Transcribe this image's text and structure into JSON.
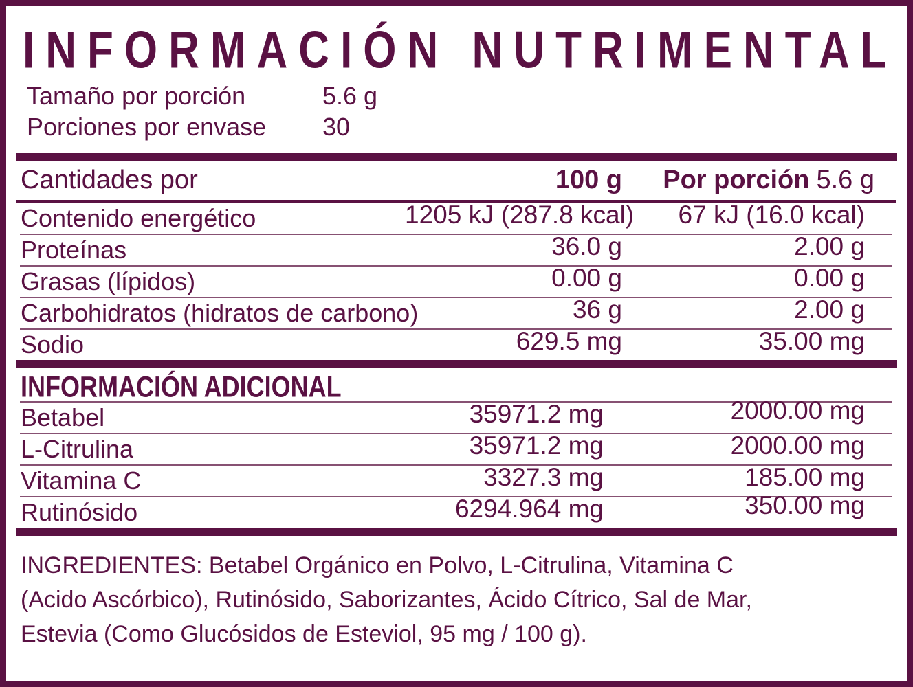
{
  "colors": {
    "primary": "#5a1143",
    "thin_divider": "#875173",
    "background": "#ffffff"
  },
  "header": {
    "title": "INFORMACIÓN NUTRIMENTAL",
    "serving_size_label": "Tamaño por porción",
    "serving_size_value": "5.6 g",
    "servings_label": "Porciones por envase",
    "servings_value": "30"
  },
  "table": {
    "amounts_label": "Cantidades por",
    "col_100g": "100 g",
    "col_portion_label": "Por porción",
    "col_portion_value": "5.6 g",
    "rows": [
      {
        "label": "Contenido energético",
        "per100": "1205 kJ (287.8 kcal)",
        "portion": "67 kJ (16.0 kcal)"
      },
      {
        "label": "Proteínas",
        "per100": "36.0 g",
        "portion": "2.00 g"
      },
      {
        "label": "Grasas (lípidos)",
        "per100": "0.00 g",
        "portion": "0.00 g"
      },
      {
        "label": "Carbohidratos (hidratos de carbono)",
        "per100": "36 g",
        "portion": "2.00 g"
      },
      {
        "label": "Sodio",
        "per100": "629.5 mg",
        "portion": "35.00 mg"
      }
    ]
  },
  "additional": {
    "title": "INFORMACIÓN ADICIONAL",
    "rows": [
      {
        "label": "Betabel",
        "per100": "35971.2 mg",
        "portion": "2000.00 mg"
      },
      {
        "label": "L-Citrulina",
        "per100": "35971.2 mg",
        "portion": "2000.00 mg"
      },
      {
        "label": "Vitamina C",
        "per100": "3327.3 mg",
        "portion": "185.00 mg"
      },
      {
        "label": "Rutinósido",
        "per100": "6294.964 mg",
        "portion": "350.00 mg"
      }
    ]
  },
  "ingredients": {
    "lines": [
      "INGREDIENTES: Betabel Orgánico en Polvo, L-Citrulina, Vitamina C",
      "(Acido Ascórbico), Rutinósido, Saborizantes, Ácido Cítrico, Sal de Mar,",
      "Estevia (Como Glucósidos de Esteviol, 95 mg / 100 g)."
    ]
  }
}
